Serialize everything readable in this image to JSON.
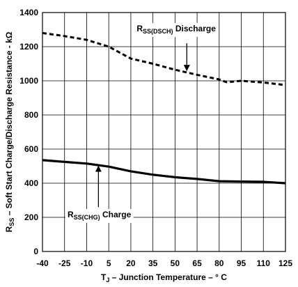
{
  "chart_data": {
    "type": "line",
    "xlabel": {
      "prefix": "T",
      "sub": "J",
      "suffix": " – Junction Temperature – ° C"
    },
    "ylabel": {
      "prefix": "R",
      "sub": "SS",
      "suffix": " – Soft Start Charge/Discharge Resistance - kΩ"
    },
    "xlim": [
      -40,
      125
    ],
    "ylim": [
      0,
      1400
    ],
    "x_ticks": [
      -40,
      -25,
      -10,
      5,
      20,
      35,
      50,
      65,
      80,
      95,
      110,
      125
    ],
    "x_tick_labels": [
      "-40",
      "-25",
      "-10",
      "5",
      "20",
      "35",
      "50",
      "65",
      "80",
      "95",
      "110",
      "125"
    ],
    "y_ticks": [
      0,
      200,
      400,
      600,
      800,
      1000,
      1200,
      1400
    ],
    "y_tick_labels": [
      "0",
      "200",
      "400",
      "600",
      "800",
      "1000",
      "1200",
      "1400"
    ],
    "grid": true,
    "series": [
      {
        "style": "dashed",
        "color": "#000000",
        "x": [
          -40,
          -25,
          -10,
          5,
          20,
          35,
          50,
          65,
          80,
          85,
          95,
          110,
          125
        ],
        "y": [
          1280,
          1262,
          1240,
          1200,
          1130,
          1100,
          1065,
          1035,
          1008,
          992,
          1000,
          990,
          975
        ]
      },
      {
        "style": "solid",
        "color": "#000000",
        "x": [
          -40,
          -25,
          -10,
          5,
          20,
          35,
          50,
          65,
          80,
          95,
          110,
          125
        ],
        "y": [
          535,
          525,
          515,
          497,
          470,
          450,
          435,
          425,
          412,
          410,
          408,
          400
        ]
      }
    ],
    "annotations": [
      {
        "id": "discharge",
        "label_prefix": "R",
        "label_sub": "SS(DSCH)",
        "label_suffix": " Discharge",
        "text_x": 24,
        "text_y": 1290,
        "arrow_x": 58,
        "arrow_from_y": 1220,
        "arrow_to_y": 1060
      },
      {
        "id": "charge",
        "label_prefix": "R",
        "label_sub": "SS(CHG)",
        "label_suffix": " Charge",
        "text_x": -23,
        "text_y": 200,
        "arrow_x": -2,
        "arrow_from_y": 260,
        "arrow_to_y": 500
      }
    ]
  }
}
